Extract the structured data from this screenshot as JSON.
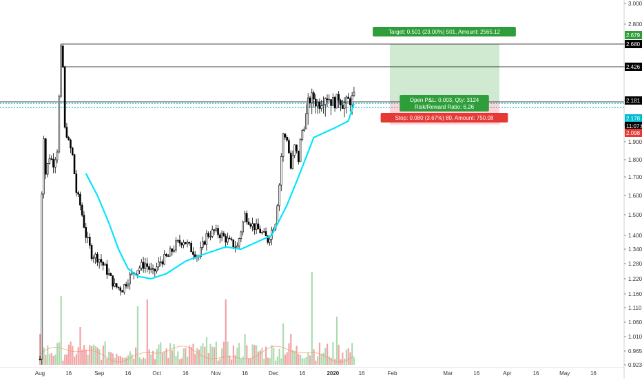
{
  "chart_data": {
    "type": "candlestick",
    "title": "",
    "xlabel": "",
    "ylabel": "",
    "x_tick_labels": [
      "Aug",
      "16",
      "Sep",
      "16",
      "Oct",
      "16",
      "Nov",
      "16",
      "Dec",
      "16",
      "2020",
      "16",
      "Feb",
      "Mar",
      "16",
      "Apr",
      "16",
      "May",
      "16"
    ],
    "y_tick_labels": [
      "3.000",
      "2.800",
      "2.680",
      "2.426",
      "2.181",
      "2.098",
      "1.900",
      "1.800",
      "1.700",
      "1.600",
      "1.500",
      "1.400",
      "1.340",
      "1.280",
      "1.220",
      "1.160",
      "1.110",
      "1.060",
      "1.010",
      "0.965",
      "0.923"
    ],
    "price_labels": {
      "target_level": "2.679",
      "resistance_high": "2.680",
      "resistance_mid": "2.426",
      "current": "2.181",
      "entry": "2.178",
      "countdown": "11:07:0",
      "stop_level": "2.098"
    },
    "levels": {
      "resistance_high": 2.68,
      "resistance_mid": 2.426,
      "entry": 2.178,
      "target": 2.679,
      "stop": 2.098,
      "current": 2.181
    },
    "position_tool": {
      "target_label": "Target: 0.501 (23.00%) 501, Amount: 2565.12",
      "open_pl_label": "Open P&L: 0.003, Qty: 3124",
      "risk_reward_label": "Risk/Reward Ratio: 6.26",
      "stop_label": "Stop: 0.080 (3.67%) 80, Amount: 750.08"
    },
    "moving_average": {
      "name": "",
      "points": [
        [
          "Aug 25",
          1.72
        ],
        [
          "Aug 31",
          1.6
        ],
        [
          "Sep 6",
          1.46
        ],
        [
          "Sep 11",
          1.34
        ],
        [
          "Sep 16",
          1.26
        ],
        [
          "Sep 21",
          1.23
        ],
        [
          "Sep 28",
          1.22
        ],
        [
          "Oct 6",
          1.24
        ],
        [
          "Oct 16",
          1.29
        ],
        [
          "Oct 26",
          1.32
        ],
        [
          "Nov 6",
          1.35
        ],
        [
          "Nov 14",
          1.34
        ],
        [
          "Nov 22",
          1.37
        ],
        [
          "Nov 30",
          1.4
        ],
        [
          "Dec 8",
          1.55
        ],
        [
          "Dec 14",
          1.7
        ],
        [
          "Dec 22",
          1.95
        ],
        [
          "Jan 2",
          2.06
        ],
        [
          "Jan 9",
          2.11
        ],
        [
          "Jan 12",
          2.17
        ]
      ]
    },
    "series": [
      {
        "name": "",
        "period": "Aug 1 – Jan 12",
        "close_path": [
          [
            "Aug 1",
            0.94
          ],
          [
            "Aug 2",
            1.62
          ],
          [
            "Aug 3",
            1.96
          ],
          [
            "Aug 4",
            1.72
          ],
          [
            "Aug 6",
            1.82
          ],
          [
            "Aug 8",
            1.78
          ],
          [
            "Aug 10",
            1.86
          ],
          [
            "Aug 11",
            2.2
          ],
          [
            "Aug 12",
            2.62
          ],
          [
            "Aug 13",
            2.42
          ],
          [
            "Aug 14",
            2.05
          ],
          [
            "Aug 16",
            1.9
          ],
          [
            "Aug 18",
            1.82
          ],
          [
            "Aug 20",
            1.62
          ],
          [
            "Aug 22",
            1.55
          ],
          [
            "Aug 25",
            1.4
          ],
          [
            "Aug 28",
            1.32
          ],
          [
            "Sep 1",
            1.3
          ],
          [
            "Sep 5",
            1.25
          ],
          [
            "Sep 9",
            1.19
          ],
          [
            "Sep 13",
            1.18
          ],
          [
            "Sep 17",
            1.23
          ],
          [
            "Sep 21",
            1.26
          ],
          [
            "Sep 25",
            1.28
          ],
          [
            "Sep 29",
            1.24
          ],
          [
            "Oct 3",
            1.29
          ],
          [
            "Oct 7",
            1.31
          ],
          [
            "Oct 11",
            1.36
          ],
          [
            "Oct 15",
            1.38
          ],
          [
            "Oct 19",
            1.34
          ],
          [
            "Oct 23",
            1.31
          ],
          [
            "Oct 27",
            1.4
          ],
          [
            "Oct 31",
            1.42
          ],
          [
            "Nov 4",
            1.4
          ],
          [
            "Nov 8",
            1.37
          ],
          [
            "Nov 12",
            1.35
          ],
          [
            "Nov 16",
            1.5
          ],
          [
            "Nov 20",
            1.45
          ],
          [
            "Nov 24",
            1.42
          ],
          [
            "Nov 28",
            1.38
          ],
          [
            "Dec 2",
            1.47
          ],
          [
            "Dec 4",
            1.66
          ],
          [
            "Dec 6",
            1.98
          ],
          [
            "Dec 8",
            1.93
          ],
          [
            "Dec 10",
            1.75
          ],
          [
            "Dec 12",
            1.87
          ],
          [
            "Dec 14",
            1.8
          ],
          [
            "Dec 16",
            2.03
          ],
          [
            "Dec 19",
            2.17
          ],
          [
            "Dec 21",
            2.21
          ],
          [
            "Dec 24",
            2.17
          ],
          [
            "Dec 28",
            2.21
          ],
          [
            "Jan 1",
            2.18
          ],
          [
            "Jan 4",
            2.2
          ],
          [
            "Jan 7",
            2.17
          ],
          [
            "Jan 10",
            2.19
          ],
          [
            "Jan 12",
            2.21
          ]
        ]
      }
    ],
    "ylim": [
      0.923,
      3.0
    ],
    "grid": false,
    "colors": {
      "up": "#26a69a",
      "down": "#ef5350",
      "candle": "#000000",
      "moving_average": "#00e5ff",
      "target_zone": "#c8e6c9",
      "stop_zone": "#ffcdd2",
      "target_badge": "#2e9e3a",
      "stop_badge": "#e53935",
      "current_price": "#00bcd4",
      "level_line": "#000000"
    }
  }
}
